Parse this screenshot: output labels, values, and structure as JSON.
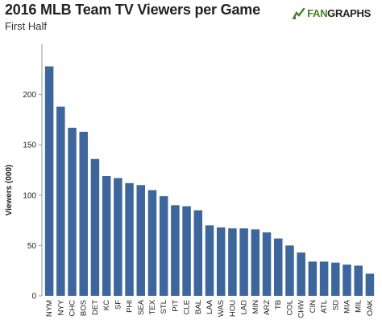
{
  "header": {
    "title": "2016 MLB Team TV Viewers per Game",
    "subtitle": "First Half",
    "brand": {
      "prefix": "FAN",
      "suffix": "GRAPHS"
    }
  },
  "colors": {
    "bar": "#3d679c",
    "brand_green": "#4a7f2c",
    "axis": "#999999"
  },
  "chart_data": {
    "type": "bar",
    "title": "2016 MLB Team TV Viewers per Game",
    "subtitle": "First Half",
    "xlabel": "",
    "ylabel": "Viewers (000)",
    "ylim": [
      0,
      250
    ],
    "yticks": [
      0,
      50,
      100,
      150,
      200
    ],
    "grid": false,
    "categories": [
      "NYM",
      "NYY",
      "CHC",
      "BOS",
      "DET",
      "KC",
      "SF",
      "PHI",
      "SEA",
      "TEX",
      "STL",
      "PIT",
      "CLE",
      "BAL",
      "LAA",
      "WAS",
      "HOU",
      "LAD",
      "MIN",
      "ARZ",
      "TB",
      "COL",
      "CHW",
      "CIN",
      "ATL",
      "SD",
      "MIA",
      "MIL",
      "OAK"
    ],
    "values": [
      228,
      188,
      167,
      163,
      136,
      119,
      117,
      112,
      110,
      105,
      99,
      90,
      89,
      85,
      70,
      68,
      67,
      67,
      66,
      63,
      57,
      50,
      43,
      34,
      34,
      33,
      31,
      30,
      22
    ]
  }
}
